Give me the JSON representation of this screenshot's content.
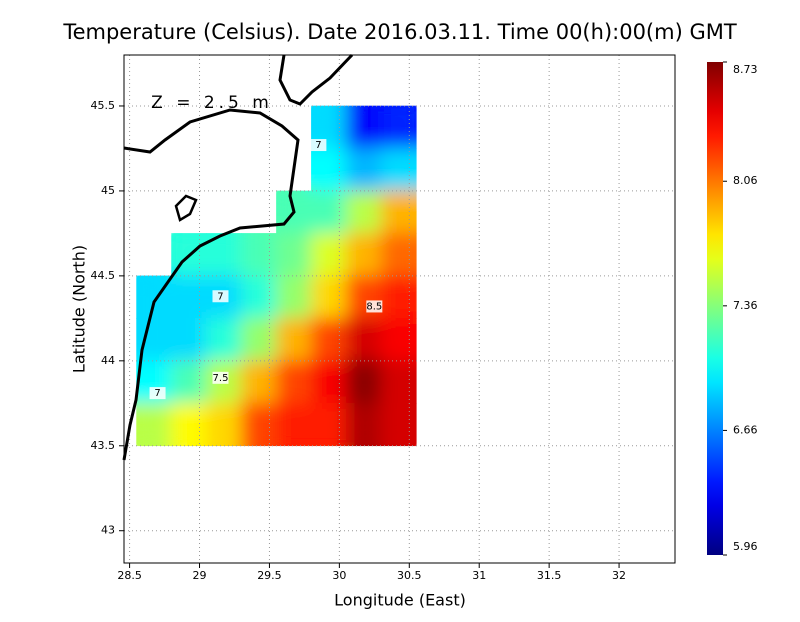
{
  "chart_data": {
    "type": "heatmap",
    "title": "Temperature (Celsius). Date 2016.03.11. Time 00(h):00(m)  GMT",
    "annotation": "Z = 2.5 m",
    "x_label": "Longitude (East)",
    "y_label": "Latitude (North)",
    "xlim": [
      28.46,
      32.4
    ],
    "ylim": [
      42.81,
      45.8
    ],
    "xticks": [
      28.5,
      29,
      29.5,
      30,
      30.5,
      31,
      31.5,
      32
    ],
    "yticks": [
      43,
      43.5,
      44,
      44.5,
      45,
      45.5
    ],
    "grid": true,
    "x_edges": [
      28.55,
      28.8,
      29.05,
      29.3,
      29.55,
      29.8,
      30.05,
      30.3,
      30.55
    ],
    "y_edges": [
      45.5,
      45.25,
      45.0,
      44.75,
      44.5,
      44.25,
      44.0,
      43.75,
      43.5
    ],
    "values": [
      [
        null,
        null,
        null,
        null,
        null,
        6.9,
        6.3,
        6.4
      ],
      [
        null,
        null,
        null,
        null,
        null,
        7.0,
        6.8,
        6.9
      ],
      [
        null,
        null,
        null,
        null,
        7.2,
        7.2,
        7.5,
        7.9
      ],
      [
        null,
        7.1,
        7.1,
        7.2,
        7.3,
        7.6,
        7.9,
        8.1
      ],
      [
        6.9,
        6.9,
        6.9,
        7.1,
        7.4,
        7.8,
        8.2,
        8.3
      ],
      [
        6.9,
        6.9,
        7.1,
        7.4,
        7.9,
        8.2,
        8.5,
        8.4
      ],
      [
        7.0,
        7.2,
        7.5,
        7.9,
        8.2,
        8.4,
        8.7,
        8.5
      ],
      [
        7.5,
        7.7,
        7.8,
        8.2,
        8.3,
        8.3,
        8.6,
        8.5
      ]
    ],
    "colorbar": {
      "clim": [
        5.96,
        8.73
      ],
      "ticks": [
        5.96,
        6.66,
        7.36,
        8.06,
        8.73
      ]
    },
    "contour_labels": [
      {
        "value": 7,
        "x": 29.85,
        "y": 45.27
      },
      {
        "value": 7,
        "x": 29.15,
        "y": 44.38
      },
      {
        "value": 7.5,
        "x": 29.15,
        "y": 43.9
      },
      {
        "value": 8.5,
        "x": 30.25,
        "y": 44.32
      },
      {
        "value": 7,
        "x": 28.7,
        "y": 43.81
      }
    ]
  }
}
